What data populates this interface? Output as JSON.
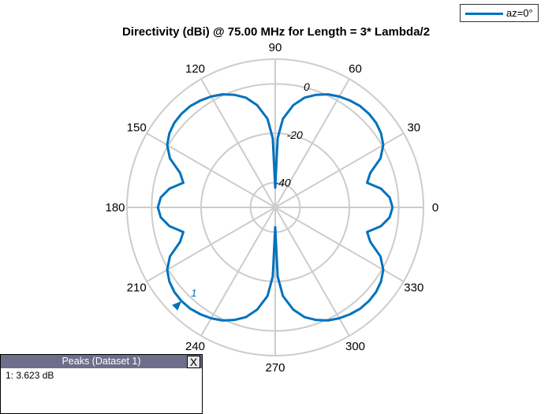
{
  "chart_data": {
    "type": "polar-line",
    "title": "Directivity (dBi) @ 75.00 MHz for Length = 3* Lambda/2",
    "rlim": [
      -50,
      10
    ],
    "r_ticks": [
      0,
      -20,
      -40
    ],
    "r_tick_labels": [
      "0",
      "-20",
      "-40"
    ],
    "theta_ticks": [
      0,
      30,
      60,
      90,
      120,
      150,
      180,
      210,
      240,
      270,
      300,
      330
    ],
    "theta_tick_labels": [
      "0",
      "30",
      "60",
      "90",
      "120",
      "150",
      "180",
      "210",
      "240",
      "270",
      "300",
      "330"
    ],
    "grid": true,
    "legend_placement": "top-right",
    "series": [
      {
        "name": "az=0°",
        "color": "#0072BD",
        "theta_deg": [
          0,
          5,
          10,
          15,
          20,
          25,
          30,
          35,
          40,
          45,
          50,
          55,
          60,
          65,
          70,
          75,
          80,
          85,
          88,
          90,
          92,
          95,
          100,
          105,
          110,
          115,
          120,
          125,
          130,
          135,
          140,
          145,
          150,
          155,
          160,
          165,
          170,
          175,
          180,
          185,
          190,
          195,
          200,
          205,
          210,
          215,
          220,
          225,
          230,
          235,
          240,
          245,
          250,
          255,
          260,
          265,
          268,
          270,
          272,
          275,
          280,
          285,
          290,
          295,
          300,
          305,
          310,
          315,
          320,
          325,
          330,
          335,
          340,
          345,
          350,
          355,
          360
        ],
        "directivity_dBi": [
          -2.5,
          -3.5,
          -6.5,
          -11.5,
          -9,
          -3,
          0.5,
          2.3,
          3.3,
          3.6,
          3.5,
          2.8,
          1.8,
          0.5,
          -1.5,
          -4,
          -8,
          -14,
          -22,
          -42,
          -22,
          -14,
          -8,
          -4,
          -1.5,
          0.5,
          1.8,
          2.8,
          3.5,
          3.6,
          3.3,
          2.3,
          0.5,
          -3,
          -9,
          -11.5,
          -6.5,
          -3.5,
          -2.5,
          -3.5,
          -6.5,
          -11.5,
          -9,
          -3,
          0.5,
          2.3,
          3.3,
          3.6,
          3.5,
          2.8,
          1.8,
          0.5,
          -1.5,
          -4,
          -8,
          -14,
          -22,
          -42,
          -22,
          -14,
          -8,
          -4,
          -1.5,
          0.5,
          1.8,
          2.8,
          3.5,
          3.6,
          3.3,
          2.3,
          0.5,
          -3,
          -9,
          -11.5,
          -6.5,
          -3.5,
          -2.5
        ]
      }
    ],
    "annotations": [
      {
        "label": "1",
        "theta_deg": 225,
        "value_dBi": 3.623,
        "type": "peak-marker"
      }
    ]
  },
  "legend": {
    "label": "az=0°"
  },
  "peaks_panel": {
    "title": "Peaks (Dataset 1)",
    "close_label": "X",
    "rows": [
      "1: 3.623 dB"
    ]
  }
}
